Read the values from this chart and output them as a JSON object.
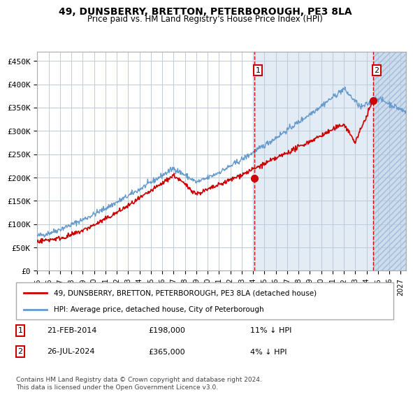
{
  "title1": "49, DUNSBERRY, BRETTON, PETERBOROUGH, PE3 8LA",
  "title2": "Price paid vs. HM Land Registry's House Price Index (HPI)",
  "xlabel": "",
  "ylabel": "",
  "ylim": [
    0,
    470000
  ],
  "yticks": [
    0,
    50000,
    100000,
    150000,
    200000,
    250000,
    300000,
    350000,
    400000,
    450000
  ],
  "ytick_labels": [
    "£0",
    "£50K",
    "£100K",
    "£150K",
    "£200K",
    "£250K",
    "£300K",
    "£350K",
    "£400K",
    "£450K"
  ],
  "hpi_color": "#6699cc",
  "price_color": "#cc0000",
  "sale1_date": 2014.13,
  "sale1_price": 198000,
  "sale2_date": 2024.57,
  "sale2_price": 365000,
  "sale1_label": "21-FEB-2014",
  "sale1_amount": "£198,000",
  "sale1_note": "11% ↓ HPI",
  "sale2_label": "26-JUL-2024",
  "sale2_amount": "£365,000",
  "sale2_note": "4% ↓ HPI",
  "legend1": "49, DUNSBERRY, BRETTON, PETERBOROUGH, PE3 8LA (detached house)",
  "legend2": "HPI: Average price, detached house, City of Peterborough",
  "footnote": "Contains HM Land Registry data © Crown copyright and database right 2024.\nThis data is licensed under the Open Government Licence v3.0.",
  "background_chart": "#dce9f5",
  "background_hatch": "#dce9f5",
  "xmin": 1995.0,
  "xmax": 2027.5,
  "shade_start": 2014.13,
  "shade_end": 2027.5,
  "hatch_start": 2024.57
}
